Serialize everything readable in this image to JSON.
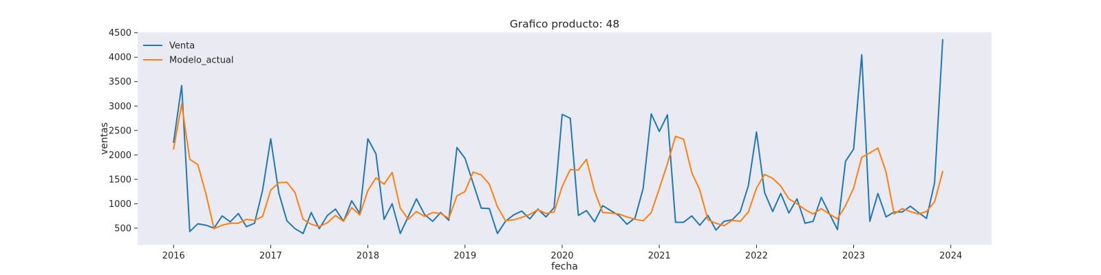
{
  "chart_data": {
    "type": "line",
    "title": "Grafico producto: 48",
    "xlabel": "fecha",
    "ylabel": "ventas",
    "xlim": [
      2015.63,
      2024.42
    ],
    "ylim": [
      160,
      4510
    ],
    "x_ticks": [
      "2016",
      "2017",
      "2018",
      "2019",
      "2020",
      "2021",
      "2022",
      "2023",
      "2024"
    ],
    "y_ticks": [
      500,
      1000,
      1500,
      2000,
      2500,
      3000,
      3500,
      4000,
      4500
    ],
    "grid": false,
    "legend_position": "top-left",
    "background": "#eaeaf2",
    "x_start": "2016-01",
    "x_step": "month",
    "series": [
      {
        "name": "Venta",
        "color": "#1f77b4",
        "values": [
          2260,
          3420,
          430,
          590,
          560,
          500,
          750,
          630,
          800,
          530,
          600,
          1280,
          2330,
          1220,
          650,
          490,
          390,
          820,
          490,
          760,
          890,
          640,
          1060,
          800,
          2330,
          2020,
          680,
          1000,
          390,
          740,
          1100,
          780,
          640,
          820,
          660,
          2150,
          1930,
          1420,
          910,
          900,
          390,
          640,
          770,
          850,
          690,
          890,
          730,
          920,
          2830,
          2750,
          760,
          860,
          630,
          960,
          860,
          760,
          580,
          710,
          1310,
          2840,
          2480,
          2820,
          620,
          620,
          750,
          560,
          760,
          460,
          640,
          670,
          840,
          1370,
          2470,
          1230,
          840,
          1210,
          810,
          1100,
          600,
          640,
          1130,
          800,
          470,
          1870,
          2120,
          4050,
          640,
          1210,
          730,
          830,
          830,
          950,
          820,
          700,
          1430,
          4360
        ]
      },
      {
        "name": "Modelo_actual",
        "color": "#ff7f0e",
        "values": [
          2120,
          3040,
          1910,
          1800,
          1200,
          490,
          560,
          600,
          600,
          680,
          660,
          740,
          1280,
          1430,
          1440,
          1230,
          680,
          580,
          530,
          610,
          760,
          640,
          920,
          770,
          1270,
          1530,
          1400,
          1640,
          910,
          680,
          840,
          740,
          820,
          800,
          700,
          1160,
          1250,
          1650,
          1590,
          1400,
          940,
          650,
          670,
          720,
          780,
          880,
          800,
          830,
          1350,
          1700,
          1690,
          1910,
          1260,
          820,
          810,
          790,
          730,
          680,
          650,
          820,
          1310,
          1820,
          2380,
          2320,
          1640,
          1280,
          670,
          600,
          550,
          660,
          640,
          830,
          1320,
          1600,
          1520,
          1360,
          1100,
          1000,
          880,
          790,
          900,
          790,
          690,
          960,
          1320,
          1950,
          2040,
          2140,
          1650,
          790,
          900,
          840,
          790,
          840,
          1040,
          1660
        ]
      }
    ]
  }
}
